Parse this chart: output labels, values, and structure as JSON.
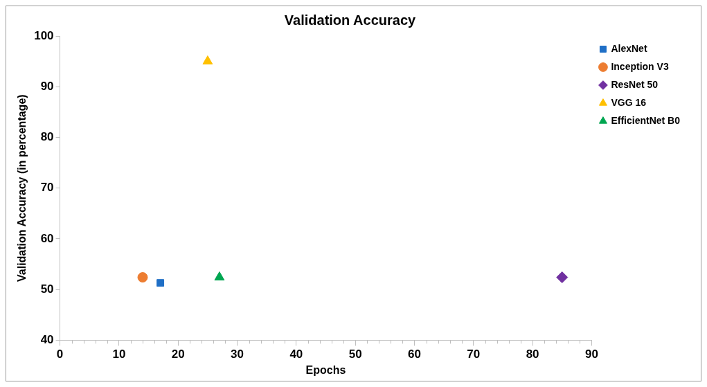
{
  "chart_data": {
    "type": "scatter",
    "title": "Validation Accuracy",
    "xlabel": "Epochs",
    "ylabel": "Validation Accuracy (in percentage)",
    "xlim": [
      0,
      90
    ],
    "xticks": [
      0,
      10,
      20,
      30,
      40,
      50,
      60,
      70,
      80,
      90
    ],
    "ylim": [
      40,
      100
    ],
    "yticks": [
      40,
      50,
      60,
      70,
      80,
      90,
      100
    ],
    "grid": false,
    "legend": "top right",
    "series": [
      {
        "name": "AlexNet",
        "color": "#1f6fc6",
        "marker": "square",
        "x": [
          17
        ],
        "values": [
          51.3
        ]
      },
      {
        "name": "Inception V3",
        "color": "#ed7d31",
        "marker": "circle",
        "x": [
          14
        ],
        "values": [
          52.4
        ]
      },
      {
        "name": "ResNet 50",
        "color": "#7030a0",
        "marker": "diamond",
        "x": [
          85
        ],
        "values": [
          52.4
        ]
      },
      {
        "name": "VGG 16",
        "color": "#ffc000",
        "marker": "triangle",
        "x": [
          25
        ],
        "values": [
          95
        ]
      },
      {
        "name": "EfficientNet B0",
        "color": "#00a651",
        "marker": "triangle",
        "x": [
          27
        ],
        "values": [
          52.4
        ]
      }
    ]
  }
}
